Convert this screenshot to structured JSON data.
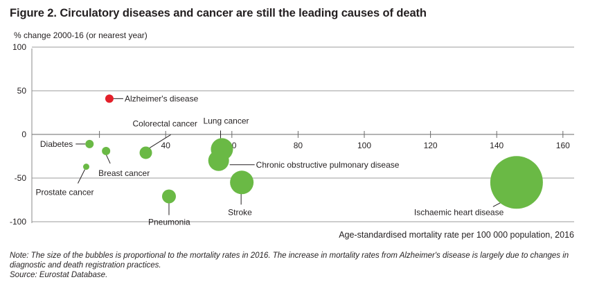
{
  "title": "Figure 2. Circulatory diseases and cancer are still the leading causes of death",
  "chart_data": {
    "type": "scatter",
    "subtype": "bubble",
    "ylabel": "% change 2000-16 (or nearest year)",
    "xlabel": "Age-standardised mortality rate per 100 000 population, 2016",
    "xlim": [
      0,
      165
    ],
    "ylim": [
      -100,
      100
    ],
    "x_ticks": [
      40,
      60,
      80,
      100,
      120,
      140,
      160
    ],
    "y_ticks": [
      100,
      50,
      0,
      -50,
      -100
    ],
    "grid": "horizontal",
    "points": [
      {
        "label": "Alzheimer's disease",
        "x": 23,
        "y": 41,
        "color": "#e3202a"
      },
      {
        "label": "Diabetes",
        "x": 17,
        "y": -11,
        "color": "#6ab945"
      },
      {
        "label": "Breast cancer",
        "x": 22,
        "y": -19,
        "color": "#6ab945"
      },
      {
        "label": "Prostate cancer",
        "x": 16,
        "y": -37,
        "color": "#6ab945"
      },
      {
        "label": "Colorectal cancer",
        "x": 34,
        "y": -21,
        "color": "#6ab945"
      },
      {
        "label": "Pneumonia",
        "x": 41,
        "y": -71,
        "color": "#6ab945"
      },
      {
        "label": "Lung cancer",
        "x": 57,
        "y": -17,
        "color": "#6ab945"
      },
      {
        "label": "Chronic obstructive pulmonary disease",
        "x": 56,
        "y": -30,
        "color": "#6ab945"
      },
      {
        "label": "Stroke",
        "x": 63,
        "y": -55,
        "color": "#6ab945"
      },
      {
        "label": "Ischaemic heart disease",
        "x": 146,
        "y": -55,
        "color": "#6ab945"
      }
    ]
  },
  "notes": {
    "note": "Note: The size of the bubbles is proportional to the mortality rates in 2016. The increase in mortality rates from Alzheimer's disease is largely due to changes in diagnostic and death registration practices.",
    "source": "Source: Eurostat Database."
  },
  "colors": {
    "green": "#6ab945",
    "red": "#e3202a",
    "axis": "#8a8a8a",
    "text": "#231f20"
  }
}
